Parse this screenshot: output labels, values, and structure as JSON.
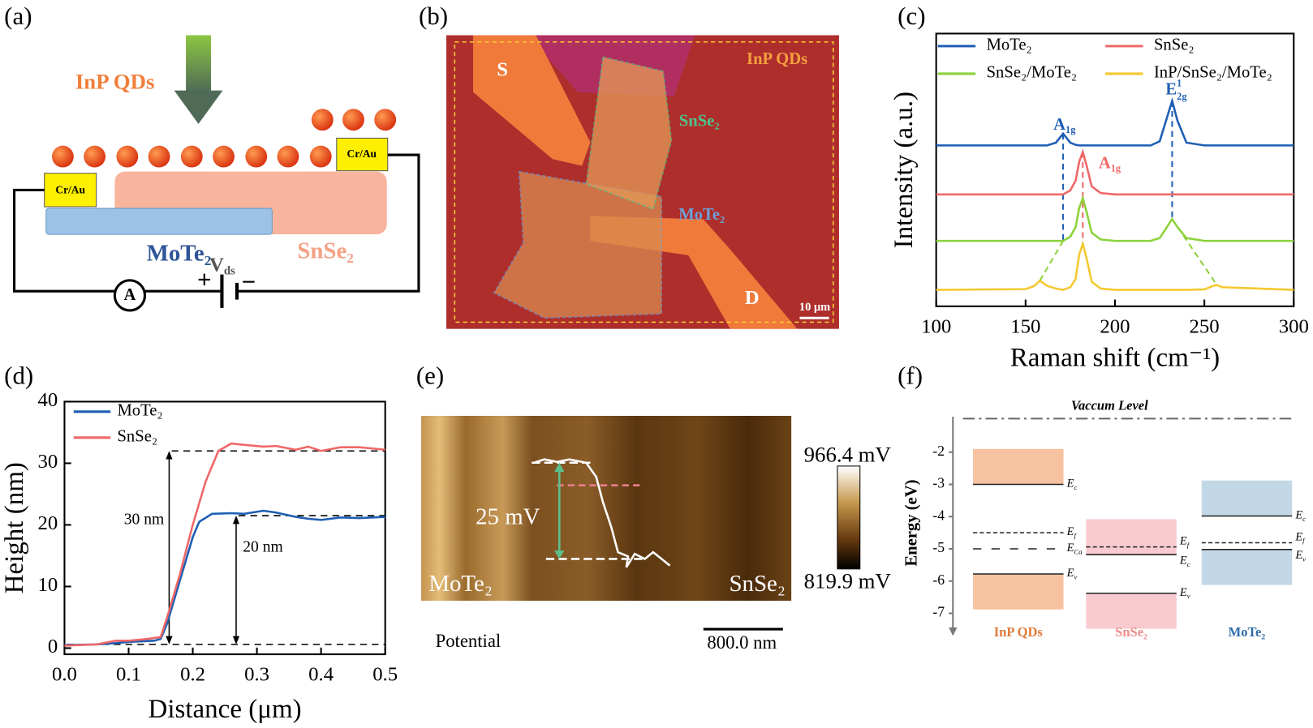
{
  "panels": {
    "a": {
      "label": "(a)",
      "qd": "InP QDs",
      "contact_left": "Cr/Au",
      "contact_right": "Cr/Au",
      "mote2": "MoTe₂",
      "snse2": "SnSe₂",
      "vds": {
        "main": "V",
        "sub": "ds"
      },
      "ammeter": "A",
      "plus": "+",
      "minus": "−"
    },
    "b": {
      "label": "(b)",
      "source": "S",
      "drain": "D",
      "qd": "InP QDs",
      "snse2": "SnSe₂",
      "mote2": "MoTe₂",
      "scale": "10 μm"
    },
    "c": {
      "label": "(c)"
    },
    "d": {
      "label": "(d)",
      "thick_a": "30 nm",
      "thick_b": "20 nm"
    },
    "e": {
      "label": "(e)",
      "step": "25 mV",
      "left": "MoTe₂",
      "right": "SnSe₂",
      "mode": "Potential",
      "scale": "800.0 nm",
      "cmax": "966.4 mV",
      "cmin": "819.9 mV"
    },
    "f": {
      "label": "(f)",
      "vacuum": "Vaccum Level",
      "ylabel": "Energy (eV)",
      "vacuum_value": -0.96,
      "ylim": [
        -7.7,
        -0.9
      ],
      "yticks": [
        -2,
        -3,
        -4,
        -5,
        -6,
        -7
      ],
      "materials": [
        {
          "name": "InP QDs",
          "color": "#e07a3a",
          "band": "#f2a878",
          "levels": [
            {
              "label": {
                "main": "E",
                "sub": "c"
              },
              "value": -3.0,
              "style": "solid"
            },
            {
              "label": {
                "main": "E",
                "sub": "f"
              },
              "value": -4.5,
              "style": "dash"
            },
            {
              "label": {
                "main": "E",
                "sub": "Ca"
              },
              "value": -5.0,
              "style": "sparse"
            },
            {
              "label": {
                "main": "E",
                "sub": "v"
              },
              "value": -5.78,
              "style": "solid"
            }
          ]
        },
        {
          "name": "SnSe₂",
          "color": "#f08a8a",
          "band": "#f6b4bc",
          "levels": [
            {
              "label": {
                "main": "E",
                "sub": "f"
              },
              "value": -4.94,
              "style": "dash"
            },
            {
              "label": {
                "main": "E",
                "sub": "c"
              },
              "value": -5.18,
              "style": "solid"
            },
            {
              "label": {
                "main": "E",
                "sub": "v"
              },
              "value": -6.38,
              "style": "solid"
            }
          ]
        },
        {
          "name": "MoTe₂",
          "color": "#2e6ca8",
          "band": "#a9c8dc",
          "levels": [
            {
              "label": {
                "main": "E",
                "sub": "c"
              },
              "value": -3.98,
              "style": "solid"
            },
            {
              "label": {
                "main": "E",
                "sub": "f"
              },
              "value": -4.81,
              "style": "dash"
            },
            {
              "label": {
                "main": "E",
                "sub": "v"
              },
              "value": -5.02,
              "style": "solid"
            }
          ]
        }
      ]
    }
  },
  "chart_data": [
    {
      "type": "line",
      "xlabel": "Raman shift (cm⁻¹)",
      "ylabel": "Intensity (a.u.)",
      "xlim": [
        100,
        300
      ],
      "xticks": [
        100,
        150,
        200,
        250,
        300
      ],
      "ylim": [
        0,
        1
      ],
      "x": [
        100,
        150,
        155,
        158,
        162,
        167,
        171,
        175,
        178,
        180,
        182,
        184,
        187,
        192,
        200,
        220,
        225,
        229,
        232,
        235,
        240,
        250,
        255,
        257,
        260,
        300
      ],
      "series": [
        {
          "name": "MoTe₂",
          "color": "#1f5fb4",
          "values": [
            0.59,
            0.59,
            0.59,
            0.59,
            0.59,
            0.6,
            0.633,
            0.6,
            0.592,
            0.59,
            0.59,
            0.59,
            0.59,
            0.59,
            0.59,
            0.59,
            0.605,
            0.69,
            0.753,
            0.68,
            0.6,
            0.59,
            0.59,
            0.59,
            0.59,
            0.59
          ]
        },
        {
          "name": "SnSe₂",
          "color": "#f06868",
          "values": [
            0.41,
            0.41,
            0.41,
            0.41,
            0.41,
            0.41,
            0.41,
            0.425,
            0.46,
            0.53,
            0.566,
            0.52,
            0.44,
            0.415,
            0.41,
            0.41,
            0.41,
            0.41,
            0.41,
            0.41,
            0.41,
            0.41,
            0.41,
            0.41,
            0.41,
            0.41
          ]
        },
        {
          "name": "SnSe₂/MoTe₂",
          "color": "#8cd23c",
          "values": [
            0.24,
            0.24,
            0.24,
            0.24,
            0.24,
            0.24,
            0.24,
            0.255,
            0.29,
            0.36,
            0.396,
            0.35,
            0.27,
            0.245,
            0.24,
            0.24,
            0.25,
            0.29,
            0.32,
            0.29,
            0.25,
            0.24,
            0.24,
            0.24,
            0.24,
            0.24
          ]
        },
        {
          "name": "InP/SnSe₂/MoTe₂",
          "color": "#f5c830",
          "values": [
            0.06,
            0.063,
            0.075,
            0.094,
            0.075,
            0.065,
            0.06,
            0.07,
            0.1,
            0.19,
            0.229,
            0.18,
            0.09,
            0.065,
            0.06,
            0.06,
            0.06,
            0.06,
            0.06,
            0.06,
            0.06,
            0.062,
            0.075,
            0.078,
            0.07,
            0.06
          ]
        }
      ],
      "peak_labels": [
        {
          "text": {
            "main": "A",
            "sub": "1g"
          },
          "color": "#1f5fb4"
        },
        {
          "text": {
            "main": "A",
            "sub": "1g"
          },
          "color": "#f06868"
        },
        {
          "text": {
            "main": "E",
            "sup": "1",
            "sub": "2g"
          },
          "color": "#1f5fb4"
        }
      ]
    },
    {
      "type": "line",
      "xlabel": "Distance (μm)",
      "ylabel": "Height (nm)",
      "xlim": [
        0,
        0.5
      ],
      "xticks": [
        {
          "value": 0,
          "label": "0.0"
        },
        0.1,
        0.2,
        0.3,
        0.4,
        0.5
      ],
      "ylim": [
        -1,
        40
      ],
      "yticks": [
        0,
        10,
        20,
        30,
        40
      ],
      "series": [
        {
          "name": "MoTe₂",
          "color": "#1f5fb4",
          "x": [
            0,
            0.05,
            0.08,
            0.1,
            0.14,
            0.15,
            0.16,
            0.18,
            0.2,
            0.21,
            0.23,
            0.26,
            0.28,
            0.31,
            0.33,
            0.36,
            0.38,
            0.4,
            0.43,
            0.46,
            0.5
          ],
          "values": [
            0.5,
            0.6,
            0.8,
            1.0,
            1.2,
            1.5,
            4,
            11,
            18,
            20.5,
            21.8,
            21.9,
            21.8,
            22.3,
            22,
            21.3,
            21,
            20.8,
            21.2,
            21.1,
            21.3
          ]
        },
        {
          "name": "SnSe₂",
          "color": "#f06868",
          "x": [
            0,
            0.05,
            0.08,
            0.1,
            0.13,
            0.15,
            0.16,
            0.18,
            0.2,
            0.22,
            0.24,
            0.26,
            0.28,
            0.31,
            0.33,
            0.36,
            0.38,
            0.4,
            0.43,
            0.46,
            0.5
          ],
          "values": [
            0.4,
            0.6,
            1.2,
            1.2,
            1.5,
            1.8,
            5,
            12,
            20,
            27,
            32,
            33.2,
            33,
            32.7,
            32.8,
            32.2,
            32.7,
            32,
            32.6,
            32.6,
            32.2
          ]
        }
      ]
    }
  ]
}
